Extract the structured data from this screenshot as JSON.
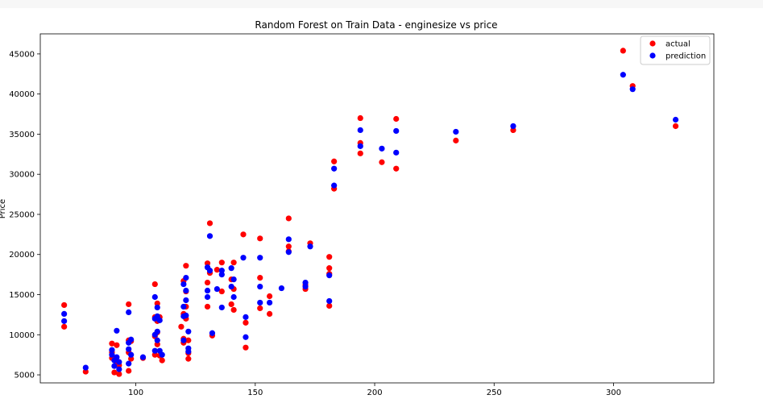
{
  "chart_data": {
    "type": "scatter",
    "title": "Random Forest on Train Data - enginesize vs price",
    "xlabel": "",
    "ylabel": "Price",
    "xlim": [
      60,
      342
    ],
    "ylim": [
      4000,
      47500
    ],
    "xticks": [
      100,
      150,
      200,
      250,
      300
    ],
    "yticks": [
      5000,
      10000,
      15000,
      20000,
      25000,
      30000,
      35000,
      40000,
      45000
    ],
    "grid": false,
    "legend": "top-right",
    "series": [
      {
        "name": "actual",
        "color": "#ff0000",
        "points": [
          [
            70,
            13700
          ],
          [
            70,
            11000
          ],
          [
            79,
            5400
          ],
          [
            90,
            8900
          ],
          [
            90,
            7800
          ],
          [
            90,
            7100
          ],
          [
            91,
            5300
          ],
          [
            92,
            8700
          ],
          [
            92,
            6600
          ],
          [
            93,
            5100
          ],
          [
            93,
            6200
          ],
          [
            97,
            13800
          ],
          [
            97,
            9300
          ],
          [
            97,
            7800
          ],
          [
            97,
            5500
          ],
          [
            98,
            9200
          ],
          [
            98,
            7000
          ],
          [
            103,
            7100
          ],
          [
            108,
            16300
          ],
          [
            108,
            12200
          ],
          [
            108,
            9800
          ],
          [
            108,
            7500
          ],
          [
            109,
            13900
          ],
          [
            109,
            11700
          ],
          [
            109,
            10300
          ],
          [
            109,
            8800
          ],
          [
            110,
            12200
          ],
          [
            110,
            7400
          ],
          [
            111,
            6800
          ],
          [
            119,
            11000
          ],
          [
            120,
            16700
          ],
          [
            120,
            12600
          ],
          [
            120,
            9500
          ],
          [
            120,
            9000
          ],
          [
            121,
            18600
          ],
          [
            121,
            15400
          ],
          [
            121,
            13500
          ],
          [
            121,
            12000
          ],
          [
            122,
            9300
          ],
          [
            122,
            7700
          ],
          [
            122,
            7000
          ],
          [
            130,
            18900
          ],
          [
            130,
            16500
          ],
          [
            130,
            13500
          ],
          [
            131,
            23900
          ],
          [
            131,
            17700
          ],
          [
            132,
            9900
          ],
          [
            134,
            18100
          ],
          [
            136,
            19000
          ],
          [
            136,
            15400
          ],
          [
            140,
            16900
          ],
          [
            140,
            13800
          ],
          [
            141,
            19000
          ],
          [
            141,
            15700
          ],
          [
            141,
            13100
          ],
          [
            145,
            22500
          ],
          [
            146,
            11500
          ],
          [
            146,
            8400
          ],
          [
            152,
            22000
          ],
          [
            152,
            17100
          ],
          [
            152,
            13300
          ],
          [
            156,
            14800
          ],
          [
            156,
            12600
          ],
          [
            164,
            24500
          ],
          [
            164,
            21000
          ],
          [
            164,
            20400
          ],
          [
            171,
            16200
          ],
          [
            171,
            15700
          ],
          [
            173,
            21400
          ],
          [
            181,
            19700
          ],
          [
            181,
            18300
          ],
          [
            181,
            17600
          ],
          [
            181,
            13600
          ],
          [
            183,
            31600
          ],
          [
            183,
            28200
          ],
          [
            194,
            37000
          ],
          [
            194,
            33900
          ],
          [
            194,
            32600
          ],
          [
            203,
            31500
          ],
          [
            209,
            36900
          ],
          [
            209,
            30700
          ],
          [
            234,
            34200
          ],
          [
            258,
            35500
          ],
          [
            304,
            45400
          ],
          [
            308,
            41000
          ],
          [
            326,
            36000
          ]
        ]
      },
      {
        "name": "prediction",
        "color": "#0000ff",
        "points": [
          [
            70,
            12600
          ],
          [
            70,
            11700
          ],
          [
            79,
            5900
          ],
          [
            90,
            8100
          ],
          [
            90,
            7500
          ],
          [
            91,
            6800
          ],
          [
            91,
            6100
          ],
          [
            92,
            10500
          ],
          [
            92,
            7200
          ],
          [
            93,
            6600
          ],
          [
            93,
            5700
          ],
          [
            97,
            12800
          ],
          [
            97,
            9000
          ],
          [
            97,
            8200
          ],
          [
            97,
            6400
          ],
          [
            98,
            9400
          ],
          [
            98,
            7500
          ],
          [
            103,
            7200
          ],
          [
            108,
            14700
          ],
          [
            108,
            12000
          ],
          [
            108,
            10000
          ],
          [
            108,
            8000
          ],
          [
            109,
            13400
          ],
          [
            109,
            12300
          ],
          [
            109,
            10400
          ],
          [
            109,
            9300
          ],
          [
            110,
            11800
          ],
          [
            110,
            8000
          ],
          [
            111,
            7500
          ],
          [
            120,
            16300
          ],
          [
            120,
            13500
          ],
          [
            120,
            12300
          ],
          [
            120,
            9300
          ],
          [
            121,
            17100
          ],
          [
            121,
            15500
          ],
          [
            121,
            14300
          ],
          [
            121,
            12400
          ],
          [
            122,
            10400
          ],
          [
            122,
            8300
          ],
          [
            122,
            7900
          ],
          [
            130,
            18400
          ],
          [
            130,
            15500
          ],
          [
            130,
            14700
          ],
          [
            131,
            22300
          ],
          [
            131,
            18000
          ],
          [
            132,
            10200
          ],
          [
            134,
            15700
          ],
          [
            136,
            18000
          ],
          [
            136,
            17500
          ],
          [
            136,
            13400
          ],
          [
            140,
            18300
          ],
          [
            140,
            16000
          ],
          [
            141,
            16900
          ],
          [
            141,
            14700
          ],
          [
            145,
            19600
          ],
          [
            146,
            12200
          ],
          [
            146,
            9700
          ],
          [
            152,
            19600
          ],
          [
            152,
            16000
          ],
          [
            152,
            14000
          ],
          [
            156,
            14000
          ],
          [
            161,
            15800
          ],
          [
            164,
            21900
          ],
          [
            164,
            20300
          ],
          [
            171,
            16500
          ],
          [
            171,
            16000
          ],
          [
            173,
            21000
          ],
          [
            181,
            17400
          ],
          [
            181,
            14200
          ],
          [
            183,
            30700
          ],
          [
            183,
            28600
          ],
          [
            194,
            35500
          ],
          [
            194,
            33500
          ],
          [
            203,
            33200
          ],
          [
            209,
            35400
          ],
          [
            209,
            32700
          ],
          [
            234,
            35300
          ],
          [
            258,
            36000
          ],
          [
            304,
            42400
          ],
          [
            308,
            40600
          ],
          [
            326,
            36800
          ]
        ]
      }
    ]
  }
}
